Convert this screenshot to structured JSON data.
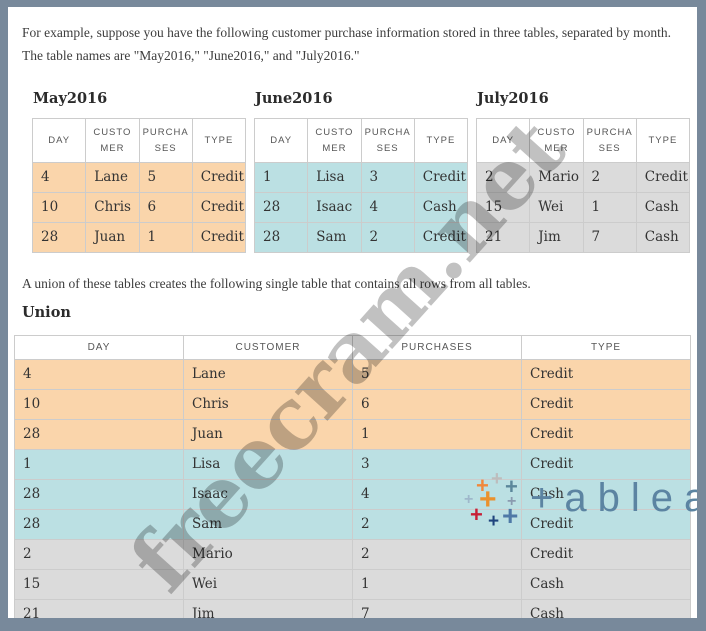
{
  "intro": {
    "line1": "For example, suppose you have the following customer purchase information stored in three tables, separated by month.",
    "line2": "The table names are \"May2016,\" \"June2016,\" and \"July2016.\""
  },
  "union_intro": "A union of these tables creates the following single table that contains all rows from all tables.",
  "palette": {
    "may": "#FAD5AB",
    "june": "#BBE0E3",
    "july": "#DBDBDB",
    "frame": "#78899B",
    "cell_border": "#CCCCCC",
    "tableau_blue": "#5C84A2"
  },
  "monthly_tables": [
    {
      "title": "May2016",
      "color_key": "may",
      "columns": [
        "DAY",
        "CUSTOMER",
        "PURCHASES",
        "TYPE"
      ],
      "rows": [
        [
          "4",
          "Lane",
          "5",
          "Credit"
        ],
        [
          "10",
          "Chris",
          "6",
          "Credit"
        ],
        [
          "28",
          "Juan",
          "1",
          "Credit"
        ]
      ]
    },
    {
      "title": "June2016",
      "color_key": "june",
      "columns": [
        "DAY",
        "CUSTOMER",
        "PURCHASES",
        "TYPE"
      ],
      "rows": [
        [
          "1",
          "Lisa",
          "3",
          "Credit"
        ],
        [
          "28",
          "Isaac",
          "4",
          "Cash"
        ],
        [
          "28",
          "Sam",
          "2",
          "Credit"
        ]
      ]
    },
    {
      "title": "July2016",
      "color_key": "july",
      "columns": [
        "DAY",
        "CUSTOMER",
        "PURCHASES",
        "TYPE"
      ],
      "rows": [
        [
          "2",
          "Mario",
          "2",
          "Credit"
        ],
        [
          "15",
          "Wei",
          "1",
          "Cash"
        ],
        [
          "21",
          "Jim",
          "7",
          "Cash"
        ]
      ]
    }
  ],
  "union_table": {
    "title": "Union",
    "columns": [
      "DAY",
      "CUSTOMER",
      "PURCHASES",
      "TYPE"
    ],
    "rows": [
      {
        "cells": [
          "4",
          "Lane",
          "5",
          "Credit"
        ],
        "source": "may"
      },
      {
        "cells": [
          "10",
          "Chris",
          "6",
          "Credit"
        ],
        "source": "may"
      },
      {
        "cells": [
          "28",
          "Juan",
          "1",
          "Credit"
        ],
        "source": "may"
      },
      {
        "cells": [
          "1",
          "Lisa",
          "3",
          "Credit"
        ],
        "source": "june"
      },
      {
        "cells": [
          "28",
          "Isaac",
          "4",
          "Cash"
        ],
        "source": "june"
      },
      {
        "cells": [
          "28",
          "Sam",
          "2",
          "Credit"
        ],
        "source": "june"
      },
      {
        "cells": [
          "2",
          "Mario",
          "2",
          "Credit"
        ],
        "source": "july"
      },
      {
        "cells": [
          "15",
          "Wei",
          "1",
          "Cash"
        ],
        "source": "july"
      },
      {
        "cells": [
          "21",
          "Jim",
          "7",
          "Cash"
        ],
        "source": "july"
      }
    ]
  },
  "watermark": {
    "text": "freecram.net"
  },
  "logo": {
    "wordmark": "+ableau",
    "marks": [
      "#F0883B",
      "#BDBDBD",
      "#5B879B",
      "#9FB8CB",
      "#EB912C",
      "#8A9BB0",
      "#C72037",
      "#1F447E",
      "#4E79A7"
    ]
  }
}
